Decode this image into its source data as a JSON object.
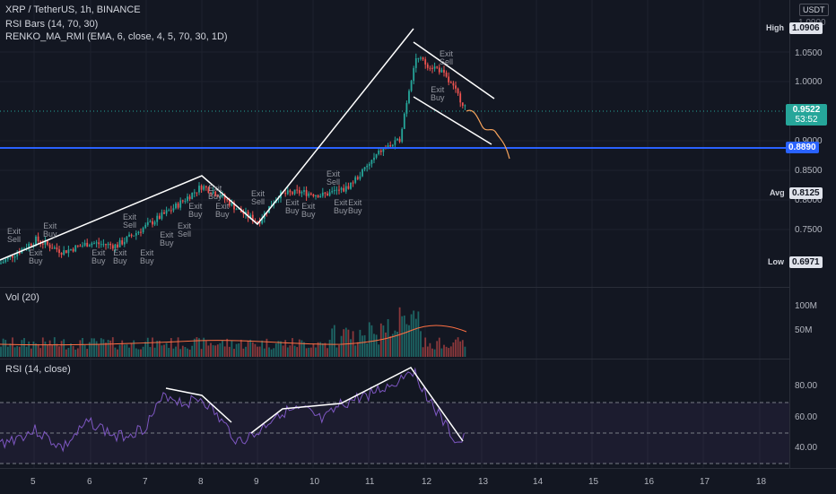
{
  "header": {
    "symbol": "XRP / TetherUS, 1h, BINANCE",
    "indicator1": "RSI Bars (14, 70, 30)",
    "indicator2": "RENKO_MA_RMI (EMA, 6, close, 4, 5, 70, 30, 1D)",
    "currency": "USDT"
  },
  "price_axis": {
    "ticks": [
      "1.0900",
      "1.0500",
      "1.0000",
      "0.9000",
      "0.8500",
      "0.8000",
      "0.7500"
    ],
    "high_label": "High",
    "high_value": "1.0906",
    "current_value": "0.9522",
    "countdown": "53:52",
    "level_value": "0.8890",
    "avg_label": "Avg",
    "avg_value": "0.8125",
    "low_label": "Low",
    "low_value": "0.6971"
  },
  "volume": {
    "label": "Vol (20)",
    "ticks": [
      "100M",
      "50M"
    ]
  },
  "rsi": {
    "label": "RSI (14, close)",
    "ticks": [
      "80.00",
      "60.00",
      "40.00"
    ]
  },
  "time_axis": {
    "ticks": [
      "5",
      "6",
      "7",
      "8",
      "9",
      "10",
      "11",
      "12",
      "13",
      "14",
      "15",
      "16",
      "17",
      "18"
    ]
  },
  "signals": [
    {
      "t": "Exit Sell"
    },
    {
      "t": "Exit Buy"
    },
    {
      "t": "Exit Buy"
    },
    {
      "t": "Exit Buy"
    },
    {
      "t": "Exit Sell"
    },
    {
      "t": "Exit Buy"
    },
    {
      "t": "Exit Buy"
    },
    {
      "t": "Exit Buy"
    },
    {
      "t": "Exit Sell"
    },
    {
      "t": "Exit Buy"
    },
    {
      "t": "Exit Buy"
    },
    {
      "t": "Exit Sell"
    },
    {
      "t": "Exit Buy"
    },
    {
      "t": "Exit Buy"
    },
    {
      "t": "Exit Buy"
    },
    {
      "t": "Exit Sell"
    },
    {
      "t": "Exit Buy"
    },
    {
      "t": "Exit Buy"
    },
    {
      "t": "Exit Sell"
    },
    {
      "t": "Exit Buy"
    }
  ],
  "colors": {
    "background": "#131722",
    "up": "#26a69a",
    "down": "#ef5350",
    "level_line": "#2962ff",
    "rsi_line": "#7e57c2",
    "drawing": "#ffffff",
    "projection": "#f7a35c",
    "vol_ma": "#ff7043",
    "current_price_bg": "#26a69a"
  }
}
